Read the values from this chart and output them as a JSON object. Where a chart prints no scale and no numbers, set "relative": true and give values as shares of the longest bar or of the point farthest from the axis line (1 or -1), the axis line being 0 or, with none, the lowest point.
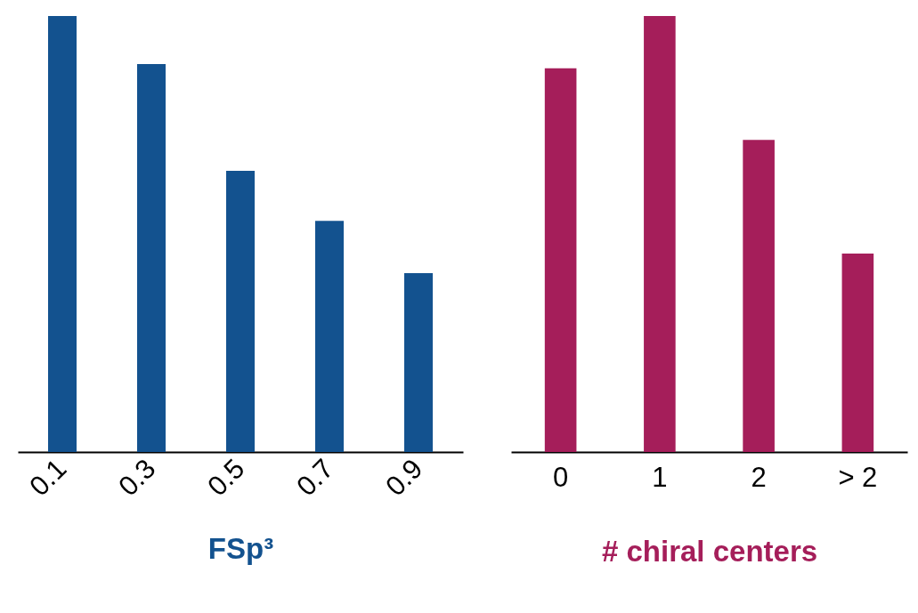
{
  "chart_data": [
    {
      "type": "bar",
      "relative": true,
      "categories": [
        "0.1",
        "0.3",
        "0.5",
        "0.7",
        "0.9"
      ],
      "values": [
        1,
        0.89,
        0.645,
        0.53,
        0.41
      ],
      "color": "#13528f",
      "xlabel": "FSp³"
    },
    {
      "type": "bar",
      "relative": true,
      "categories": [
        "0",
        "1",
        "2",
        "> 2"
      ],
      "values": [
        0.88,
        1,
        0.716,
        0.455
      ],
      "color": "#a51e5a",
      "xlabel": "# chiral centers"
    }
  ]
}
